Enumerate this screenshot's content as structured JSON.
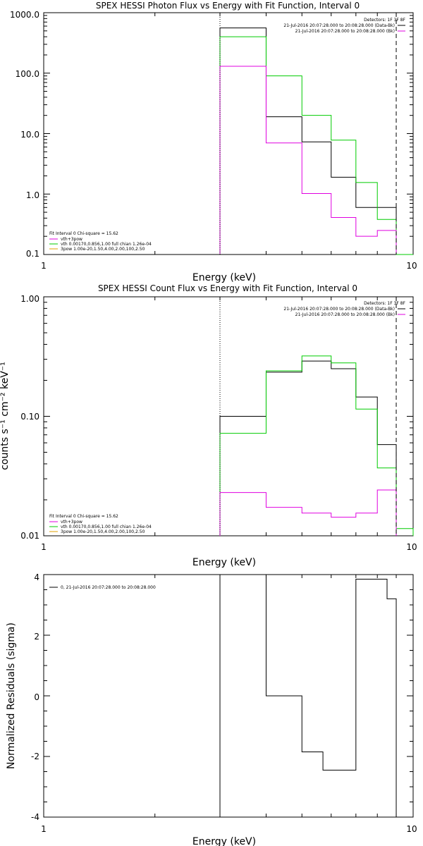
{
  "chart_data": [
    {
      "type": "line",
      "title": "SPEX HESSI Photon Flux vs Energy with Fit Function, Interval 0",
      "xlabel": "Energy (keV)",
      "ylabel": "",
      "xscale": "log",
      "yscale": "log",
      "xlim": [
        1,
        10
      ],
      "ylim": [
        0.1,
        1000
      ],
      "xticklabels": [
        "1",
        "10"
      ],
      "yticklabels": [
        "0.1",
        "1.0",
        "10.0",
        "100.0",
        "1000.0"
      ],
      "yticks": [
        0.1,
        1,
        10,
        100,
        1000
      ],
      "info_lines": [
        "Detectors: 1F 3F 8F",
        "21-Jul-2016 20:07:28.000 to 20:08:28.000 (Data-Bk)",
        "21-Jul-2016 20:07:28.000 to 20:08:28.000 (Bk)"
      ],
      "legend_lines": [
        "Fit Interval 0   Chi-square = 15.62",
        "vth+3pow",
        "vth 0.00170,0.856,1.00  full chian 1.26e-04",
        "3pow 1.00e-20,1.50,4.00,2.00,100,2.50"
      ],
      "bin_edges": [
        3,
        4,
        5,
        6,
        7,
        8,
        9
      ],
      "series": [
        {
          "name": "Data-Bk",
          "color": "#000000",
          "values": [
            560,
            19,
            7.3,
            1.9,
            0.6,
            0.6
          ]
        },
        {
          "name": "vth+3pow",
          "color": "#00cc00",
          "edges": [
            3,
            4,
            5,
            6,
            7,
            8,
            9,
            10
          ],
          "values": [
            400,
            90,
            20,
            7.8,
            1.55,
            0.38,
            0.1
          ]
        },
        {
          "name": "Bk",
          "color": "#e000e0",
          "values": [
            130,
            7,
            1.02,
            0.41,
            0.2,
            0.25
          ]
        }
      ],
      "vlines": [
        {
          "x": 3.0,
          "style": "dotted"
        },
        {
          "x": 9.0,
          "style": "dashed"
        }
      ]
    },
    {
      "type": "line",
      "title": "SPEX HESSI Count Flux vs Energy with Fit Function, Interval 0",
      "xlabel": "Energy (keV)",
      "ylabel": "counts s⁻¹ cm⁻² keV⁻¹",
      "xscale": "log",
      "yscale": "log",
      "xlim": [
        1,
        10
      ],
      "ylim": [
        0.01,
        1.0
      ],
      "xticklabels": [
        "1",
        "10"
      ],
      "yticklabels": [
        "0.01",
        "0.10",
        "1.00"
      ],
      "yticks": [
        0.01,
        0.1,
        1.0
      ],
      "info_lines": [
        "Detectors: 1F 3F 8F",
        "21-Jul-2016 20:07:28.000 to 20:08:28.000 (Data-Bk)",
        "21-Jul-2016 20:07:28.000 to 20:08:28.000 (Bk)"
      ],
      "legend_lines": [
        "Fit Interval 0   Chi-square = 15.62",
        "vth+3pow",
        "vth 0.00170,0.856,1.00  full chian 1.26e-04",
        "3pow 1.00e-20,1.50,4.00,2.00,100,2.50"
      ],
      "bin_edges": [
        3.0,
        3.5,
        4.0,
        4.5,
        5.0,
        5.5,
        6.0,
        6.5,
        7.0,
        7.5,
        8.0,
        8.5,
        9.0
      ],
      "series": [
        {
          "name": "Data-Bk",
          "color": "#000000",
          "edges": [
            3.0,
            3.5,
            4.0,
            4.5,
            5.0,
            5.5,
            6.0,
            6.5,
            7.0,
            7.5,
            8.0,
            8.5,
            9.0
          ],
          "values": [
            0.1,
            0.1,
            0.234,
            0.234,
            0.29,
            0.29,
            0.25,
            0.25,
            0.145,
            0.145,
            0.058,
            0.058
          ]
        },
        {
          "name": "vth+3pow",
          "color": "#00cc00",
          "edges": [
            3.0,
            3.5,
            4.0,
            4.5,
            5.0,
            5.5,
            6.0,
            6.5,
            7.0,
            7.5,
            8.0,
            8.5,
            9.0,
            10.0
          ],
          "values": [
            0.072,
            0.072,
            0.24,
            0.24,
            0.32,
            0.32,
            0.28,
            0.28,
            0.115,
            0.115,
            0.037,
            0.037,
            0.0115
          ]
        },
        {
          "name": "Bk",
          "color": "#e000e0",
          "edges": [
            3.0,
            3.5,
            4.0,
            4.5,
            5.0,
            5.5,
            6.0,
            6.5,
            7.0,
            7.5,
            8.0,
            8.5,
            9.0
          ],
          "values": [
            0.023,
            0.023,
            0.0173,
            0.0173,
            0.0155,
            0.0155,
            0.0143,
            0.0143,
            0.0155,
            0.0155,
            0.0242,
            0.0242
          ]
        }
      ],
      "vlines": [
        {
          "x": 3.0,
          "style": "dotted"
        },
        {
          "x": 9.0,
          "style": "dashed"
        }
      ]
    },
    {
      "type": "line",
      "title": "",
      "xlabel": "Energy (keV)",
      "ylabel": "Normalized Residuals (sigma)",
      "xscale": "log",
      "yscale": "linear",
      "xlim": [
        1,
        10
      ],
      "ylim": [
        -4,
        4
      ],
      "xticklabels": [
        "1",
        "10"
      ],
      "yticklabels": [
        "-4",
        "-2",
        "0",
        "2",
        "4"
      ],
      "yticks": [
        -4,
        -2,
        0,
        2,
        4
      ],
      "legend_lines": [
        "0, 21-Jul-2016 20:07:28.000 to 20:08:28.000"
      ],
      "series": [
        {
          "name": "0, 21-Jul-2016 20:07:28.000 to 20:08:28.000",
          "color": "#000000",
          "edges": [
            3.0,
            3.6,
            4.0,
            4.5,
            5.0,
            5.7,
            6.2,
            7.0,
            7.6,
            8.5,
            9.0
          ],
          "values": [
            4.0,
            4.0,
            0.0,
            0.0,
            -1.85,
            -2.45,
            -2.45,
            3.85,
            3.85,
            3.2
          ]
        }
      ]
    }
  ]
}
